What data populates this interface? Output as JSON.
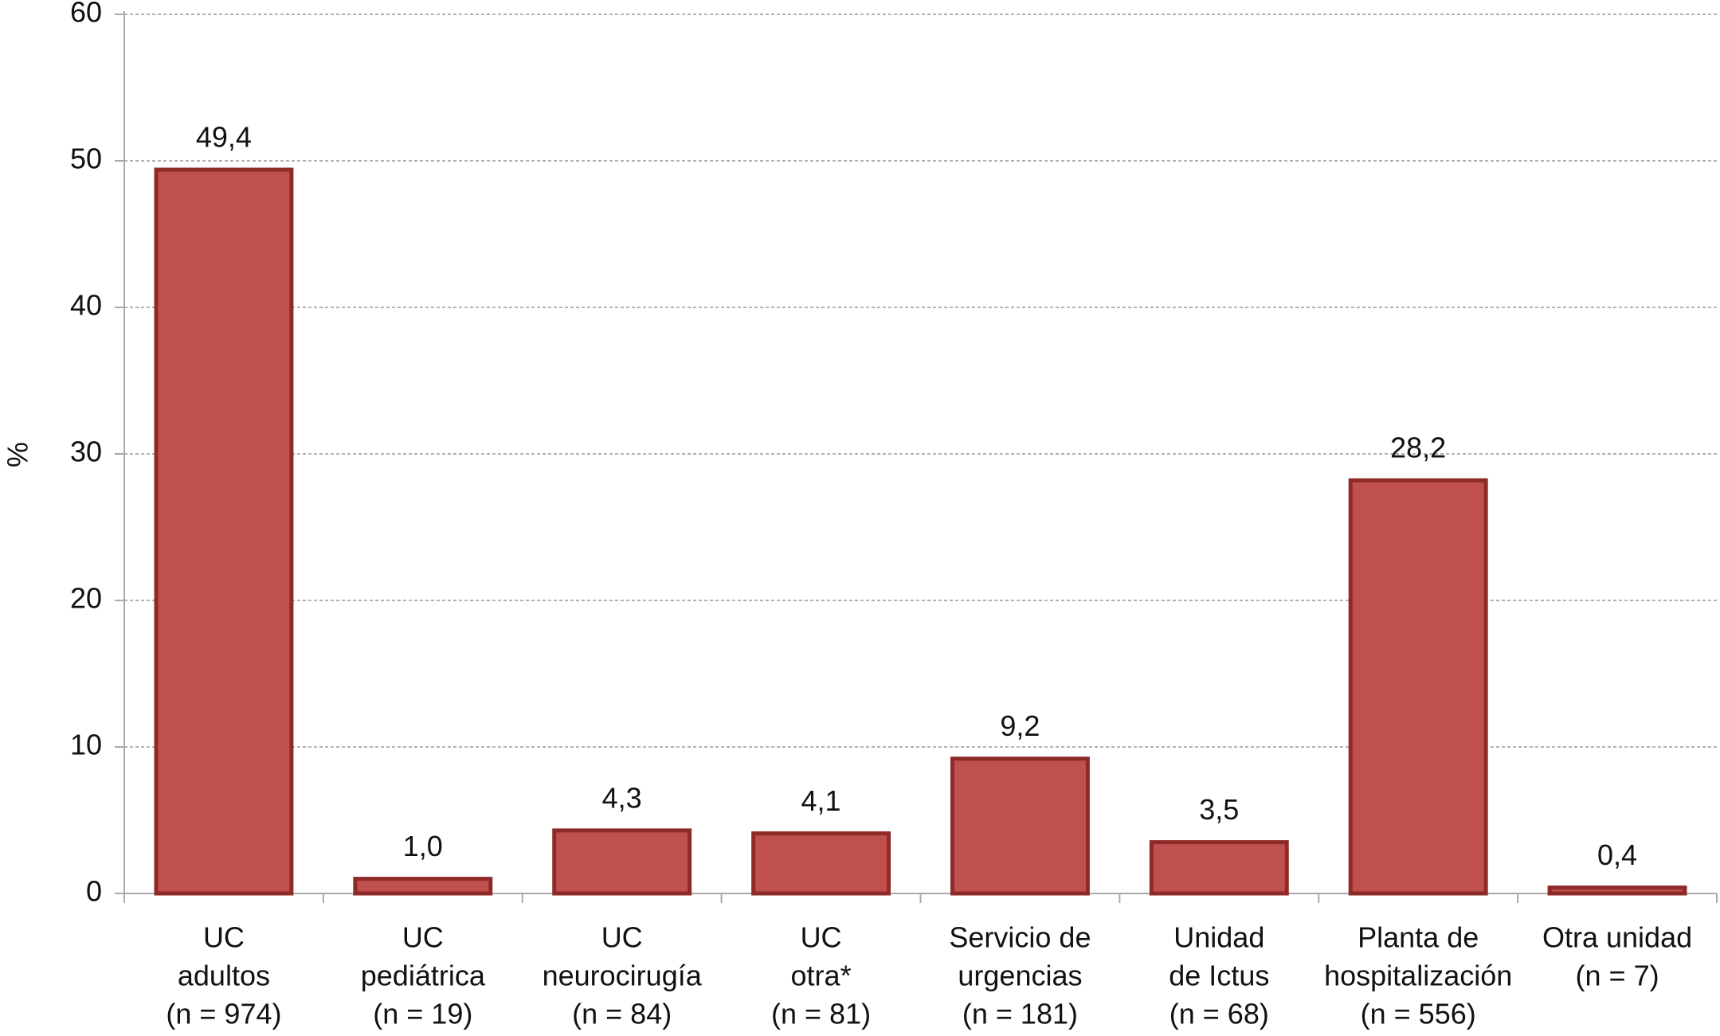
{
  "chart_data": {
    "type": "bar",
    "y_label": "%",
    "categories": [
      [
        "UC",
        "adultos",
        "(n = 974)"
      ],
      [
        "UC",
        "pediátrica",
        "(n = 19)"
      ],
      [
        "UC",
        "neurocirugía",
        "(n = 84)"
      ],
      [
        "UC",
        "otra*",
        "(n = 81)"
      ],
      [
        "Servicio de",
        "urgencias",
        "(n = 181)"
      ],
      [
        "Unidad",
        "de Ictus",
        "(n = 68)"
      ],
      [
        "Planta de",
        "hospitalización",
        "(n = 556)"
      ],
      [
        "Otra unidad",
        "(n = 7)"
      ]
    ],
    "values": [
      49.4,
      1.0,
      4.3,
      4.1,
      9.2,
      3.5,
      28.2,
      0.4
    ],
    "value_labels": [
      "49,4",
      "1,0",
      "4,3",
      "4,1",
      "9,2",
      "3,5",
      "28,2",
      "0,4"
    ],
    "color": "#c0504d",
    "ylim": [
      0,
      60
    ],
    "yticks": [
      0,
      10,
      20,
      30,
      40,
      50,
      60
    ],
    "grid": true
  }
}
